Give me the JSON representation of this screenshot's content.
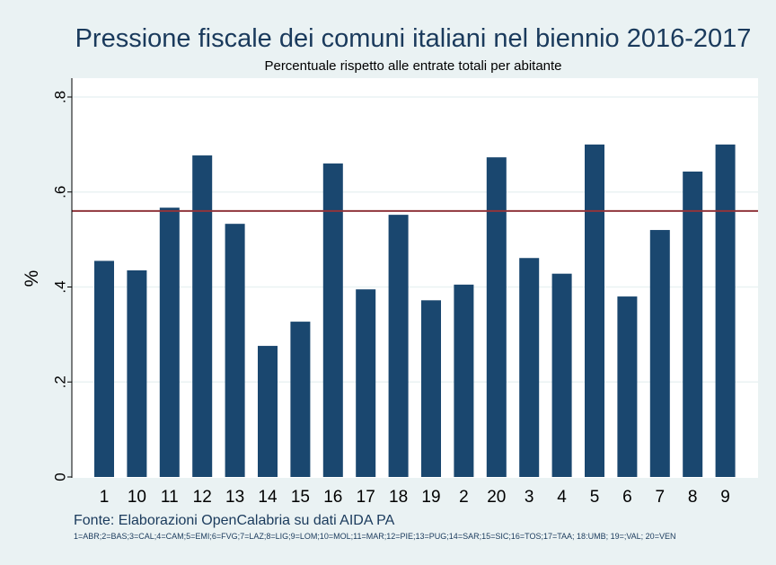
{
  "chart_data": {
    "type": "bar",
    "title": "Pressione fiscale dei comuni italiani nel biennio 2016-2017",
    "subtitle": "Percentuale rispetto alle entrate totali per abitante",
    "ylabel": "%",
    "xlabel": "",
    "ylim": [
      0,
      0.8
    ],
    "yticks": [
      0,
      0.2,
      0.4,
      0.6,
      0.8
    ],
    "ytick_labels": [
      "0",
      ".2",
      ".4",
      ".6",
      ".8"
    ],
    "grid": true,
    "categories": [
      "1",
      "10",
      "11",
      "12",
      "13",
      "14",
      "15",
      "16",
      "17",
      "18",
      "19",
      "2",
      "20",
      "3",
      "4",
      "5",
      "6",
      "7",
      "8",
      "9"
    ],
    "values": [
      0.455,
      0.435,
      0.567,
      0.677,
      0.533,
      0.276,
      0.327,
      0.66,
      0.395,
      0.552,
      0.372,
      0.405,
      0.673,
      0.461,
      0.428,
      0.7,
      0.38,
      0.52,
      0.643,
      0.7
    ],
    "reference_line": 0.56,
    "colors": {
      "bar": "#1a476f",
      "reference_line": "#90353b",
      "plot_bg": "#ffffff",
      "outer_bg": "#eaf2f3",
      "grid": "#eaf2f3"
    },
    "source_note": "Fonte: Elaborazioni OpenCalabria su dati AIDA PA",
    "legend_note": "1=ABR;2=BAS;3=CAL;4=CAM;5=EMI;6=FVG;7=LAZ;8=LIG;9=LOM;10=MOL;11=MAR;12=PIE;13=PUG;14=SAR;15=SIC;16=TOS;17=TAA; 18:UMB; 19=;VAL; 20=VEN"
  }
}
